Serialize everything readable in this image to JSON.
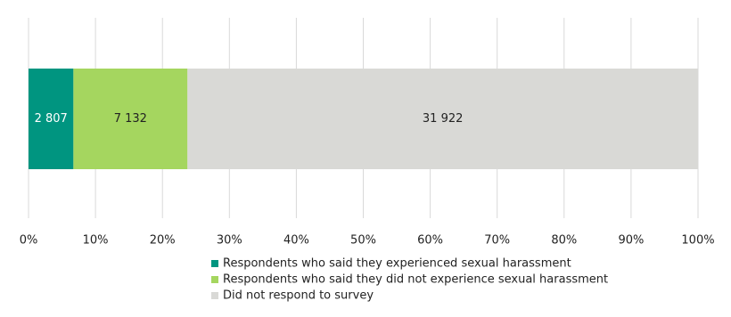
{
  "chart_data": {
    "type": "bar",
    "orientation": "horizontal",
    "stack": "percent",
    "categories": [
      null
    ],
    "series": [
      {
        "name": "Respondents who said they experienced sexual harassment",
        "color": "#009580",
        "label_color": "#ffffff",
        "values": [
          2807
        ],
        "value_labels": [
          "2 807"
        ]
      },
      {
        "name": "Respondents who said they did not experience sexual harassment",
        "color": "#a5d65f",
        "label_color": "#222222",
        "values": [
          7132
        ],
        "value_labels": [
          "7 132"
        ]
      },
      {
        "name": "Did not respond to survey",
        "color": "#d9d9d6",
        "label_color": "#222222",
        "values": [
          31922
        ],
        "value_labels": [
          "31 922"
        ]
      }
    ],
    "xlim": [
      0,
      100
    ],
    "xticks": [
      {
        "value": 0,
        "label": "0%"
      },
      {
        "value": 10,
        "label": "10%"
      },
      {
        "value": 20,
        "label": "20%"
      },
      {
        "value": 30,
        "label": "30%"
      },
      {
        "value": 40,
        "label": "40%"
      },
      {
        "value": 50,
        "label": "50%"
      },
      {
        "value": 60,
        "label": "60%"
      },
      {
        "value": 70,
        "label": "70%"
      },
      {
        "value": 80,
        "label": "80%"
      },
      {
        "value": 90,
        "label": "90%"
      },
      {
        "value": 100,
        "label": "100%"
      }
    ],
    "grid": true,
    "legend": "bottom"
  }
}
